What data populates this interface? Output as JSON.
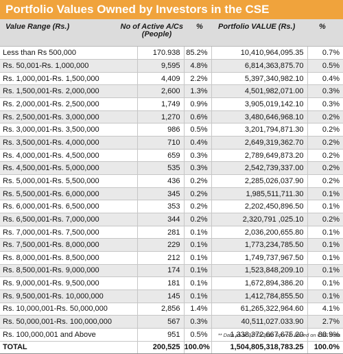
{
  "title": "Portfolio Values Owned by Investors in the CSE",
  "headers": {
    "range": "Value Range (Rs.)",
    "accounts_line1": "No of Active A/Cs",
    "accounts_line2": "(People)",
    "pct1": "%",
    "value": "Portfolio VALUE (Rs.)",
    "pct2": "%"
  },
  "rows": [
    [
      "Less than Rs 500,000",
      "170.938",
      "85.2%",
      "10,410,964,095.35",
      "0.7%"
    ],
    [
      "Rs. 50,001-Rs. 1,000,000",
      "9,595",
      "4.8%",
      "6,814,363,875.70",
      "0.5%"
    ],
    [
      "Rs. 1,000,001-Rs. 1,500,000",
      "4,409",
      "2.2%",
      "5,397,340,982.10",
      "0.4%"
    ],
    [
      "Rs. 1,500,001-Rs. 2,000,000",
      "2,600",
      "1.3%",
      "4,501,982,071.00",
      "0.3%"
    ],
    [
      "Rs. 2,000,001-Rs. 2,500,000",
      "1,749",
      "0.9%",
      "3,905,019,142.10",
      "0.3%"
    ],
    [
      "Rs. 2,500,001-Rs. 3,000,000",
      "1,270",
      "0.6%",
      "3,480,646,968.10",
      "0.2%"
    ],
    [
      "Rs. 3,000,001-Rs. 3,500,000",
      "986",
      "0.5%",
      "3,201,794,871.30",
      "0.2%"
    ],
    [
      "Rs. 3,500,001-Rs. 4,000,000",
      "710",
      "0.4%",
      "2,649,319,362.70",
      "0.2%"
    ],
    [
      "Rs. 4,000,001-Rs. 4,500,000",
      "659",
      "0.3%",
      "2,789,649,873.20",
      "0.2%"
    ],
    [
      "Rs. 4,500,001-Rs. 5,000,000",
      "535",
      "0.3%",
      "2,542,739,337.00",
      "0.2%"
    ],
    [
      "Rs. 5,000,001-Rs. 5,500,000",
      "436",
      "0.2%",
      "2,285,026,037.90",
      "0.2%"
    ],
    [
      "Rs. 5,500,001-Rs. 6,000,000",
      "345",
      "0.2%",
      "1,985,511,711.30",
      "0.1%"
    ],
    [
      "Rs. 6,000,001-Rs. 6,500,000",
      "353",
      "0.2%",
      "2,202,450,896.50",
      "0.1%"
    ],
    [
      "Rs. 6,500,001-Rs. 7,000,000",
      "344",
      "0.2%",
      "2,320,791 ,025.10",
      "0.2%"
    ],
    [
      "Rs. 7,000,001-Rs. 7,500,000",
      "281",
      "0.1%",
      "2,036,200,655.80",
      "0.1%"
    ],
    [
      "Rs. 7,500,001-Rs. 8,000,000",
      "229",
      "0.1%",
      "1,773,234,785.50",
      "0.1%"
    ],
    [
      "Rs. 8,000,001-Rs. 8,500,000",
      "212",
      "0.1%",
      "1,749,737,967.50",
      "0.1%"
    ],
    [
      "Rs. 8,500,001-Rs. 9,000,000",
      "174",
      "0.1%",
      "1,523,848,209.10",
      "0.1%"
    ],
    [
      "Rs. 9,000,001-Rs. 9,500,000",
      "181",
      "0.1%",
      "1,672,894,386.20",
      "0.1%"
    ],
    [
      "Rs. 9,500,001-Rs. 10,000,000",
      "145",
      "0.1%",
      "1,412,784,855.50",
      "0.1%"
    ],
    [
      "Rs. 10,000,001-Rs. 50,000,000",
      "2,856",
      "1.4%",
      "61,265,322,964.60",
      "4.1%"
    ],
    [
      "Rs. 50,000,001-Rs. 100,000,000",
      "567",
      "0.3%",
      "40,511,027.033.90",
      "2.7%"
    ],
    [
      "Rs. 100,000,001 and Above",
      "951",
      "0.5%",
      "1,338,372,667,675.20",
      "88.9%"
    ]
  ],
  "total": [
    "TOTAL",
    "200,525",
    "100.0%",
    "1,504,805,318,783.25",
    "100.0%"
  ],
  "footnote": "** Data as at 31/12/2011 Source: Based on CSE Data",
  "colors": {
    "title_bg": "#f0a33c",
    "header_bg": "#dcdcdc",
    "row_alt": "#e9e9e9"
  }
}
